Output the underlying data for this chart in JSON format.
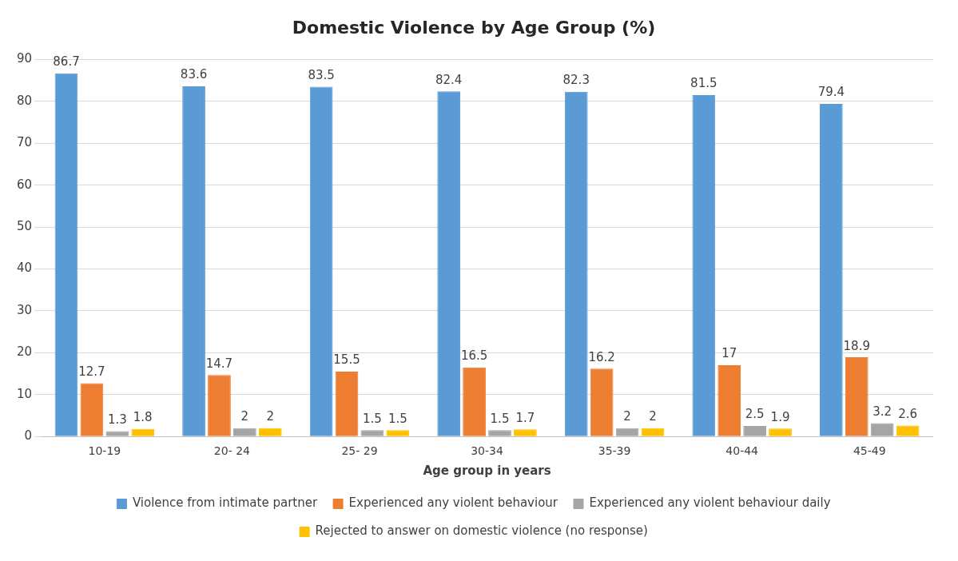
{
  "chart_data": {
    "type": "bar",
    "title": "Domestic Violence by Age Group (%)",
    "xlabel": "Age group in years",
    "categories": [
      "10-19",
      "20- 24",
      "25- 29",
      "30-34",
      "35-39",
      "40-44",
      "45-49"
    ],
    "series": [
      {
        "name": "Violence from intimate partner",
        "color": "#5b9bd5",
        "values": [
          86.7,
          83.6,
          83.5,
          82.4,
          82.3,
          81.5,
          79.4
        ]
      },
      {
        "name": "Experienced any violent behaviour",
        "color": "#ed7d31",
        "values": [
          12.7,
          14.7,
          15.5,
          16.5,
          16.2,
          17,
          18.9
        ]
      },
      {
        "name": "Experienced any violent behaviour daily",
        "color": "#a5a5a5",
        "values": [
          1.3,
          2,
          1.5,
          1.5,
          2,
          2.5,
          3.2
        ]
      },
      {
        "name": "Rejected to answer on domestic violence (no response)",
        "color": "#ffc000",
        "values": [
          1.8,
          2,
          1.5,
          1.7,
          2,
          1.9,
          2.6
        ]
      }
    ],
    "ylim": [
      0,
      90
    ],
    "yticks": [
      0,
      10,
      20,
      30,
      40,
      50,
      60,
      70,
      80,
      90
    ],
    "grid": "y",
    "legend": "bottom",
    "data_labels": true
  }
}
